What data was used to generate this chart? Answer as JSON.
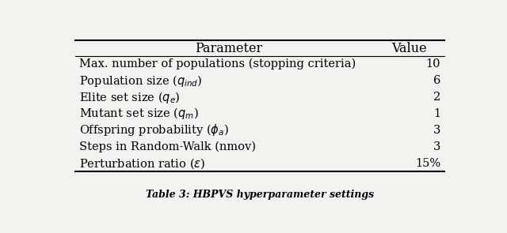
{
  "col_headers": [
    "Parameter",
    "Value"
  ],
  "rows": [
    [
      "Max. number of populations (stopping criteria)",
      "10"
    ],
    [
      "Population size ($q_{ind}$)",
      "6"
    ],
    [
      "Elite set size ($q_{e}$)",
      "2"
    ],
    [
      "Mutant set size ($q_{m}$)",
      "1"
    ],
    [
      "Offspring probability ($\\phi_{a}$)",
      "3"
    ],
    [
      "Steps in Random-Walk (nmov)",
      "3"
    ],
    [
      "Perturbation ratio ($\\epsilon$)",
      "15%"
    ]
  ],
  "caption": "Table 3: HBPVS hyperparameter settings",
  "bg_color": "#f2f2ee",
  "header_line_lw": 1.5,
  "thin_line_lw": 0.8,
  "font_size": 10.5,
  "header_font_size": 11.5
}
